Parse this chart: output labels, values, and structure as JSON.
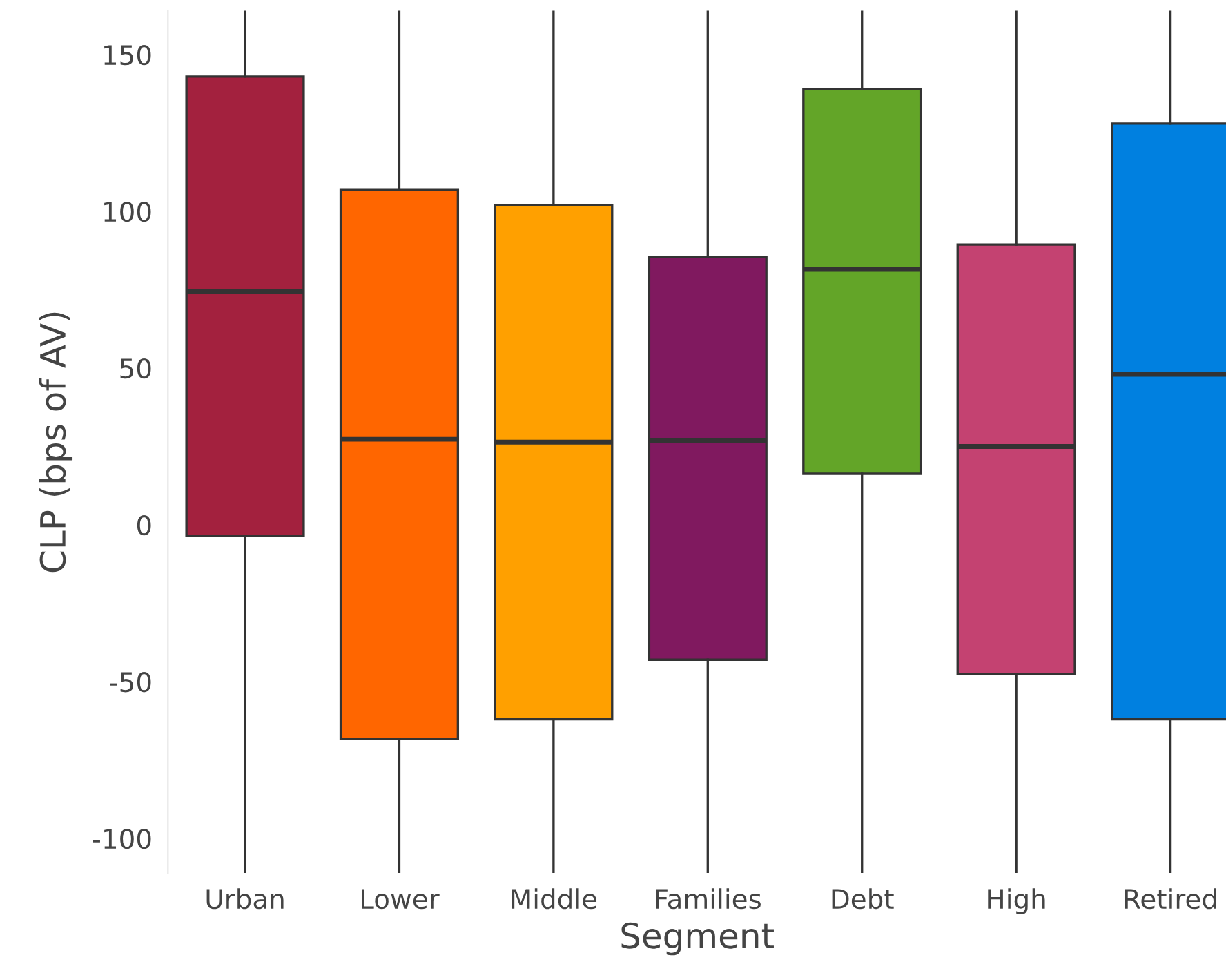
{
  "chart_data": {
    "type": "box",
    "xlabel": "Segment",
    "ylabel": "CLP (bps of AV)",
    "categories": [
      "Urban",
      "Lower",
      "Middle",
      "Families",
      "Debt",
      "High",
      "Retired"
    ],
    "colors": [
      "#a3213e",
      "#ff6600",
      "#ffa000",
      "#80195f",
      "#63a528",
      "#c44271",
      "#0080e0"
    ],
    "boxes": [
      {
        "low": -111,
        "q1": -3.5,
        "median": 74.4,
        "q3": 143,
        "high": 164
      },
      {
        "low": -111,
        "q1": -68.3,
        "median": 27.3,
        "q3": 107,
        "high": 164
      },
      {
        "low": -111,
        "q1": -62,
        "median": 26.4,
        "q3": 102,
        "high": 164
      },
      {
        "low": -111,
        "q1": -43,
        "median": 27,
        "q3": 85.5,
        "high": 164
      },
      {
        "low": -111,
        "q1": 16.3,
        "median": 81.5,
        "q3": 139,
        "high": 164
      },
      {
        "low": -111,
        "q1": -47.6,
        "median": 25,
        "q3": 89.4,
        "high": 164
      },
      {
        "low": -111,
        "q1": -62,
        "median": 48,
        "q3": 128,
        "high": 164
      }
    ],
    "ylim": [
      -111,
      164
    ],
    "yticks": [
      -100,
      -50,
      0,
      50,
      100,
      150
    ],
    "grid": false
  }
}
